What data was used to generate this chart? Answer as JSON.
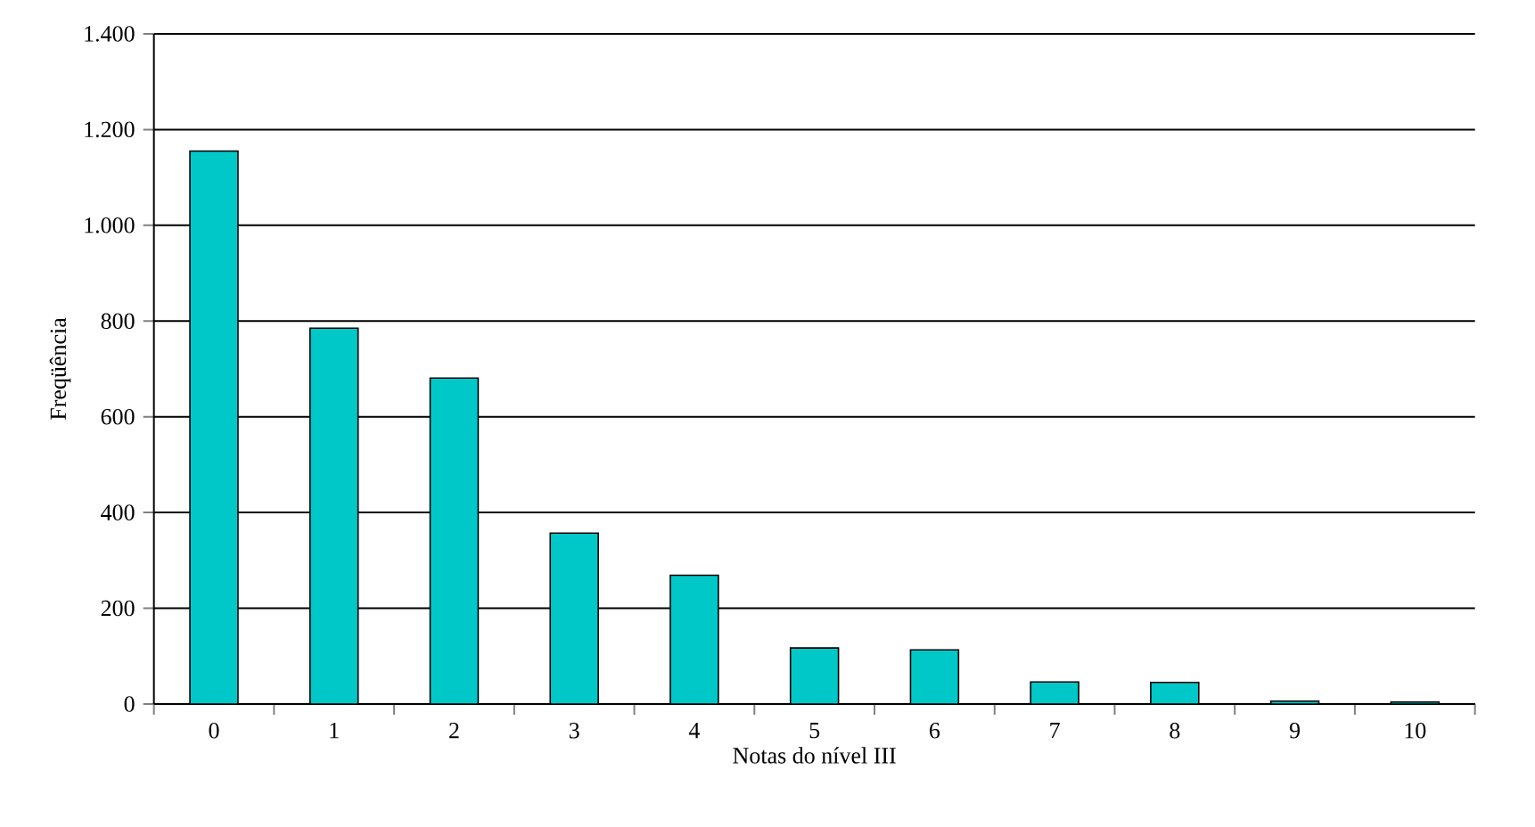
{
  "chart_data": {
    "type": "bar",
    "xlabel": "Notas do nível III",
    "ylabel": "Freqüência",
    "categories": [
      "0",
      "1",
      "2",
      "3",
      "4",
      "5",
      "6",
      "7",
      "8",
      "9",
      "10"
    ],
    "values": [
      1155,
      785,
      681,
      357,
      269,
      117,
      113,
      46,
      45,
      6,
      4
    ],
    "color": "#00c8c8",
    "ylim": [
      0,
      1400
    ],
    "yticks": [
      0,
      200,
      400,
      600,
      800,
      {
        "value": 1000,
        "label": "1.000"
      },
      {
        "value": 1200,
        "label": "1.200"
      },
      {
        "value": 1400,
        "label": "1.400"
      }
    ],
    "grid": "y"
  }
}
